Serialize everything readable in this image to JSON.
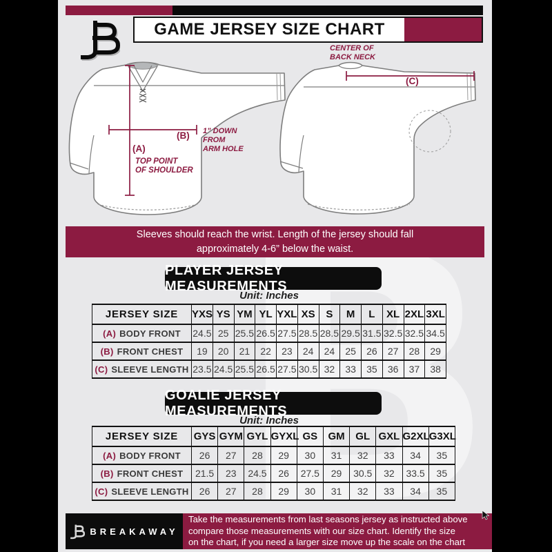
{
  "colors": {
    "accent_maroon": "#8C1B41",
    "bar_black": "#0A0A0A",
    "page_background": "#E8E8EA"
  },
  "header": {
    "title": "GAME JERSEY SIZE CHART"
  },
  "diagram": {
    "a_tag": "(A)",
    "a_caption_line1": "TOP POINT",
    "a_caption_line2": "OF SHOULDER",
    "b_tag": "(B)",
    "b_caption_line1": "1” DOWN",
    "b_caption_line2": "FROM",
    "b_caption_line3": "ARM HOLE",
    "c_tag": "(C)",
    "c_caption_line1": "CENTER OF",
    "c_caption_line2": "BACK NECK"
  },
  "notice": {
    "line1": "Sleeves should reach the wrist. Length of the jersey should fall",
    "line2": "approximately 4-6” below the waist."
  },
  "player_section": {
    "title": "PLAYER JERSEY MEASUREMENTS",
    "unit": "Unit: Inches",
    "table": {
      "size_header": "JERSEY SIZE",
      "sizes": [
        "YXS",
        "YS",
        "YM",
        "YL",
        "YXL",
        "XS",
        "S",
        "M",
        "L",
        "XL",
        "2XL",
        "3XL"
      ],
      "rows": [
        {
          "prefix": "(A)",
          "label": "BODY FRONT",
          "values": [
            "24.5",
            "25",
            "25.5",
            "26.5",
            "27.5",
            "28.5",
            "28.5",
            "29.5",
            "31.5",
            "32.5",
            "32.5",
            "34.5"
          ]
        },
        {
          "prefix": "(B)",
          "label": "FRONT CHEST",
          "values": [
            "19",
            "20",
            "21",
            "22",
            "23",
            "24",
            "24",
            "25",
            "26",
            "27",
            "28",
            "29"
          ]
        },
        {
          "prefix": "(C)",
          "label": "SLEEVE LENGTH",
          "values": [
            "23.5",
            "24.5",
            "25.5",
            "26.5",
            "27.5",
            "30.5",
            "32",
            "33",
            "35",
            "36",
            "37",
            "38"
          ]
        }
      ]
    }
  },
  "goalie_section": {
    "title": "GOALIE JERSEY MEASUREMENTS",
    "unit": "Unit: Inches",
    "table": {
      "size_header": "JERSEY SIZE",
      "sizes": [
        "GYS",
        "GYM",
        "GYL",
        "GYXL",
        "GS",
        "GM",
        "GL",
        "GXL",
        "G2XL",
        "G3XL"
      ],
      "rows": [
        {
          "prefix": "(A)",
          "label": "BODY FRONT",
          "values": [
            "26",
            "27",
            "28",
            "29",
            "30",
            "31",
            "32",
            "33",
            "34",
            "35"
          ]
        },
        {
          "prefix": "(B)",
          "label": "FRONT CHEST",
          "values": [
            "21.5",
            "23",
            "24.5",
            "26",
            "27.5",
            "29",
            "30.5",
            "32",
            "33.5",
            "35"
          ]
        },
        {
          "prefix": "(C)",
          "label": "SLEEVE LENGTH",
          "values": [
            "26",
            "27",
            "28",
            "29",
            "30",
            "31",
            "32",
            "33",
            "34",
            "35"
          ]
        }
      ]
    }
  },
  "footer": {
    "brand": "BREAKAWAY",
    "line1": "Take the measurements from last seasons jersey as instructed above",
    "line2": "compare those measurements  with our size chart. Identify the size",
    "line3": "on the chart, if you need a larger size move up the scale on the chart"
  },
  "watermark_glyph": "B"
}
